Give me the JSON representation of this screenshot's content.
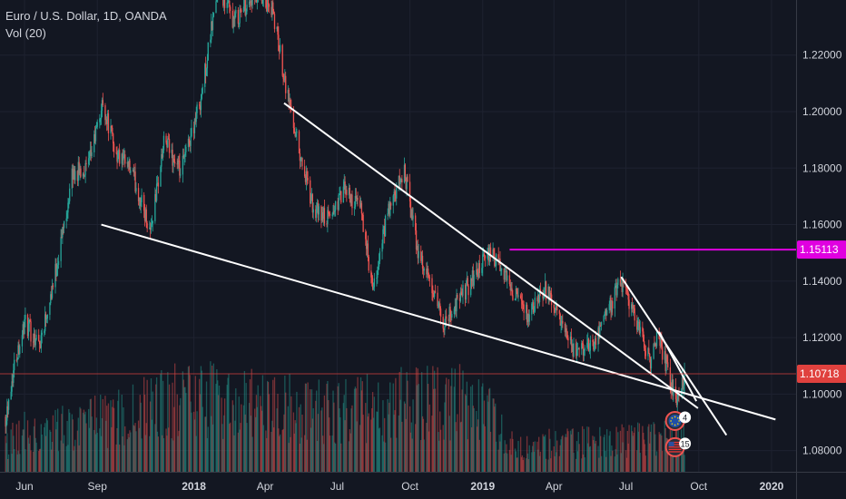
{
  "header": {
    "symbol_line": "Euro / U.S. Dollar, 1D, OANDA",
    "volume_line": "Vol (20)"
  },
  "colors": {
    "background": "#131722",
    "up": "#26a69a",
    "down": "#ef5350",
    "trendline": "#ffffff",
    "resistance": "#e000e0",
    "current_price": "#e0413e",
    "axis_text": "#d1d4dc"
  },
  "price_labels": {
    "level": "1.15113",
    "current": "1.10718"
  },
  "event_markers": [
    {
      "name": "eu-event-flag-icon",
      "count": "4"
    },
    {
      "name": "us-event-flag-icon",
      "count": "15"
    }
  ],
  "chart_data": {
    "type": "candlestick",
    "y_ticks": [
      "1.22000",
      "1.20000",
      "1.18000",
      "1.16000",
      "1.14000",
      "1.12000",
      "1.10000",
      "1.08000"
    ],
    "y_tick_values": [
      1.22,
      1.2,
      1.18,
      1.16,
      1.14,
      1.12,
      1.1,
      1.08
    ],
    "x_ticks": [
      "Jun",
      "Sep",
      "2018",
      "Apr",
      "Jul",
      "Oct",
      "2019",
      "Apr",
      "Jul",
      "Oct",
      "2020"
    ],
    "x_tick_dates": [
      "2017-06-01",
      "2017-09-01",
      "2018-01-01",
      "2018-04-01",
      "2018-07-01",
      "2018-10-01",
      "2019-01-01",
      "2019-04-01",
      "2019-07-01",
      "2019-10-01",
      "2020-01-01"
    ],
    "date_range": [
      "2017-05-01",
      "2020-02-01"
    ],
    "ylim": [
      1.0725,
      1.2395
    ],
    "price_path": [
      [
        "2017-05-08",
        1.092
      ],
      [
        "2017-05-20",
        1.112
      ],
      [
        "2017-06-01",
        1.125
      ],
      [
        "2017-06-20",
        1.118
      ],
      [
        "2017-07-10",
        1.143
      ],
      [
        "2017-08-01",
        1.178
      ],
      [
        "2017-08-20",
        1.18
      ],
      [
        "2017-09-08",
        1.203
      ],
      [
        "2017-09-25",
        1.185
      ],
      [
        "2017-10-15",
        1.178
      ],
      [
        "2017-11-07",
        1.158
      ],
      [
        "2017-11-25",
        1.19
      ],
      [
        "2017-12-15",
        1.178
      ],
      [
        "2018-01-10",
        1.205
      ],
      [
        "2018-02-01",
        1.245
      ],
      [
        "2018-02-20",
        1.232
      ],
      [
        "2018-03-15",
        1.24
      ],
      [
        "2018-04-10",
        1.236
      ],
      [
        "2018-04-27",
        1.21
      ],
      [
        "2018-05-15",
        1.185
      ],
      [
        "2018-06-01",
        1.165
      ],
      [
        "2018-06-20",
        1.162
      ],
      [
        "2018-07-10",
        1.172
      ],
      [
        "2018-08-01",
        1.165
      ],
      [
        "2018-08-15",
        1.135
      ],
      [
        "2018-09-01",
        1.162
      ],
      [
        "2018-09-24",
        1.179
      ],
      [
        "2018-10-10",
        1.152
      ],
      [
        "2018-11-12",
        1.125
      ],
      [
        "2018-12-01",
        1.133
      ],
      [
        "2019-01-10",
        1.15
      ],
      [
        "2019-02-01",
        1.14
      ],
      [
        "2019-03-01",
        1.127
      ],
      [
        "2019-03-20",
        1.138
      ],
      [
        "2019-04-25",
        1.115
      ],
      [
        "2019-05-20",
        1.118
      ],
      [
        "2019-06-25",
        1.14
      ],
      [
        "2019-07-20",
        1.122
      ],
      [
        "2019-08-01",
        1.11
      ],
      [
        "2019-08-10",
        1.122
      ],
      [
        "2019-09-02",
        1.097
      ],
      [
        "2019-09-13",
        1.107
      ]
    ],
    "volume_profile": [
      [
        "2017-05-01",
        0.06
      ],
      [
        "2017-06-01",
        0.11
      ],
      [
        "2017-09-01",
        0.13
      ],
      [
        "2018-01-01",
        0.2
      ],
      [
        "2018-04-01",
        0.17
      ],
      [
        "2018-07-01",
        0.16
      ],
      [
        "2018-10-01",
        0.18
      ],
      [
        "2019-01-01",
        0.19
      ],
      [
        "2019-02-10",
        0.07
      ],
      [
        "2019-06-01",
        0.08
      ],
      [
        "2019-09-13",
        0.09
      ]
    ],
    "trendlines": [
      {
        "name": "upper-wedge-trendline",
        "from": [
          "2018-04-25",
          1.203
        ],
        "to": [
          "2019-09-30",
          1.095
        ]
      },
      {
        "name": "lower-wedge-trendline",
        "from": [
          "2017-09-06",
          1.16
        ],
        "to": [
          "2020-01-06",
          1.091
        ]
      },
      {
        "name": "short-downtrend-line",
        "from": [
          "2019-06-25",
          1.1415
        ],
        "to": [
          "2019-11-05",
          1.0855
        ]
      },
      {
        "name": "recent-upper-trendline",
        "from": [
          "2019-08-12",
          1.122
        ],
        "to": [
          "2019-09-28",
          1.0975
        ]
      }
    ],
    "horizontal_level": {
      "value": 1.15113,
      "from": "2019-02-04"
    },
    "current_price": 1.10718
  }
}
